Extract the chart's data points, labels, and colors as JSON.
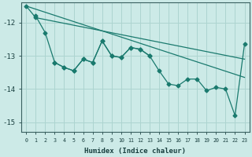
{
  "xlabel": "Humidex (Indice chaleur)",
  "background_color": "#cceae7",
  "grid_color": "#add4d0",
  "line_color": "#1a7a6e",
  "xlim": [
    -0.5,
    23.5
  ],
  "ylim": [
    -15.3,
    -11.4
  ],
  "yticks": [
    -15,
    -14,
    -13,
    -12
  ],
  "xticks": [
    0,
    1,
    2,
    3,
    4,
    5,
    6,
    7,
    8,
    9,
    10,
    11,
    12,
    13,
    14,
    15,
    16,
    17,
    18,
    19,
    20,
    21,
    22,
    23
  ],
  "series_upper": [
    null,
    -11.8,
    -12.3,
    -13.2,
    -13.35,
    -13.45,
    -13.1,
    -13.2,
    -12.55,
    -13.0,
    -13.05,
    -12.75,
    -12.8,
    -13.0,
    null,
    null,
    null,
    null,
    null,
    null,
    null,
    null,
    null,
    null
  ],
  "series_lower": [
    null,
    null,
    null,
    -13.2,
    -13.35,
    -13.45,
    -13.1,
    -13.2,
    -12.55,
    -13.0,
    -13.05,
    -12.75,
    -12.8,
    -13.0,
    -13.45,
    -13.85,
    -13.9,
    -13.7,
    -13.7,
    -14.05,
    -13.95,
    -14.0,
    -14.8,
    -12.65
  ],
  "series_start": [
    -11.5,
    -11.85,
    null,
    null,
    null,
    null,
    null,
    null,
    null,
    null,
    null,
    null,
    null,
    null,
    null,
    null,
    null,
    null,
    null,
    null,
    null,
    null,
    null,
    null
  ],
  "trend1_x": [
    0,
    23
  ],
  "trend1_y": [
    -11.5,
    -13.65
  ],
  "trend2_x": [
    1,
    23
  ],
  "trend2_y": [
    -11.85,
    -13.1
  ]
}
